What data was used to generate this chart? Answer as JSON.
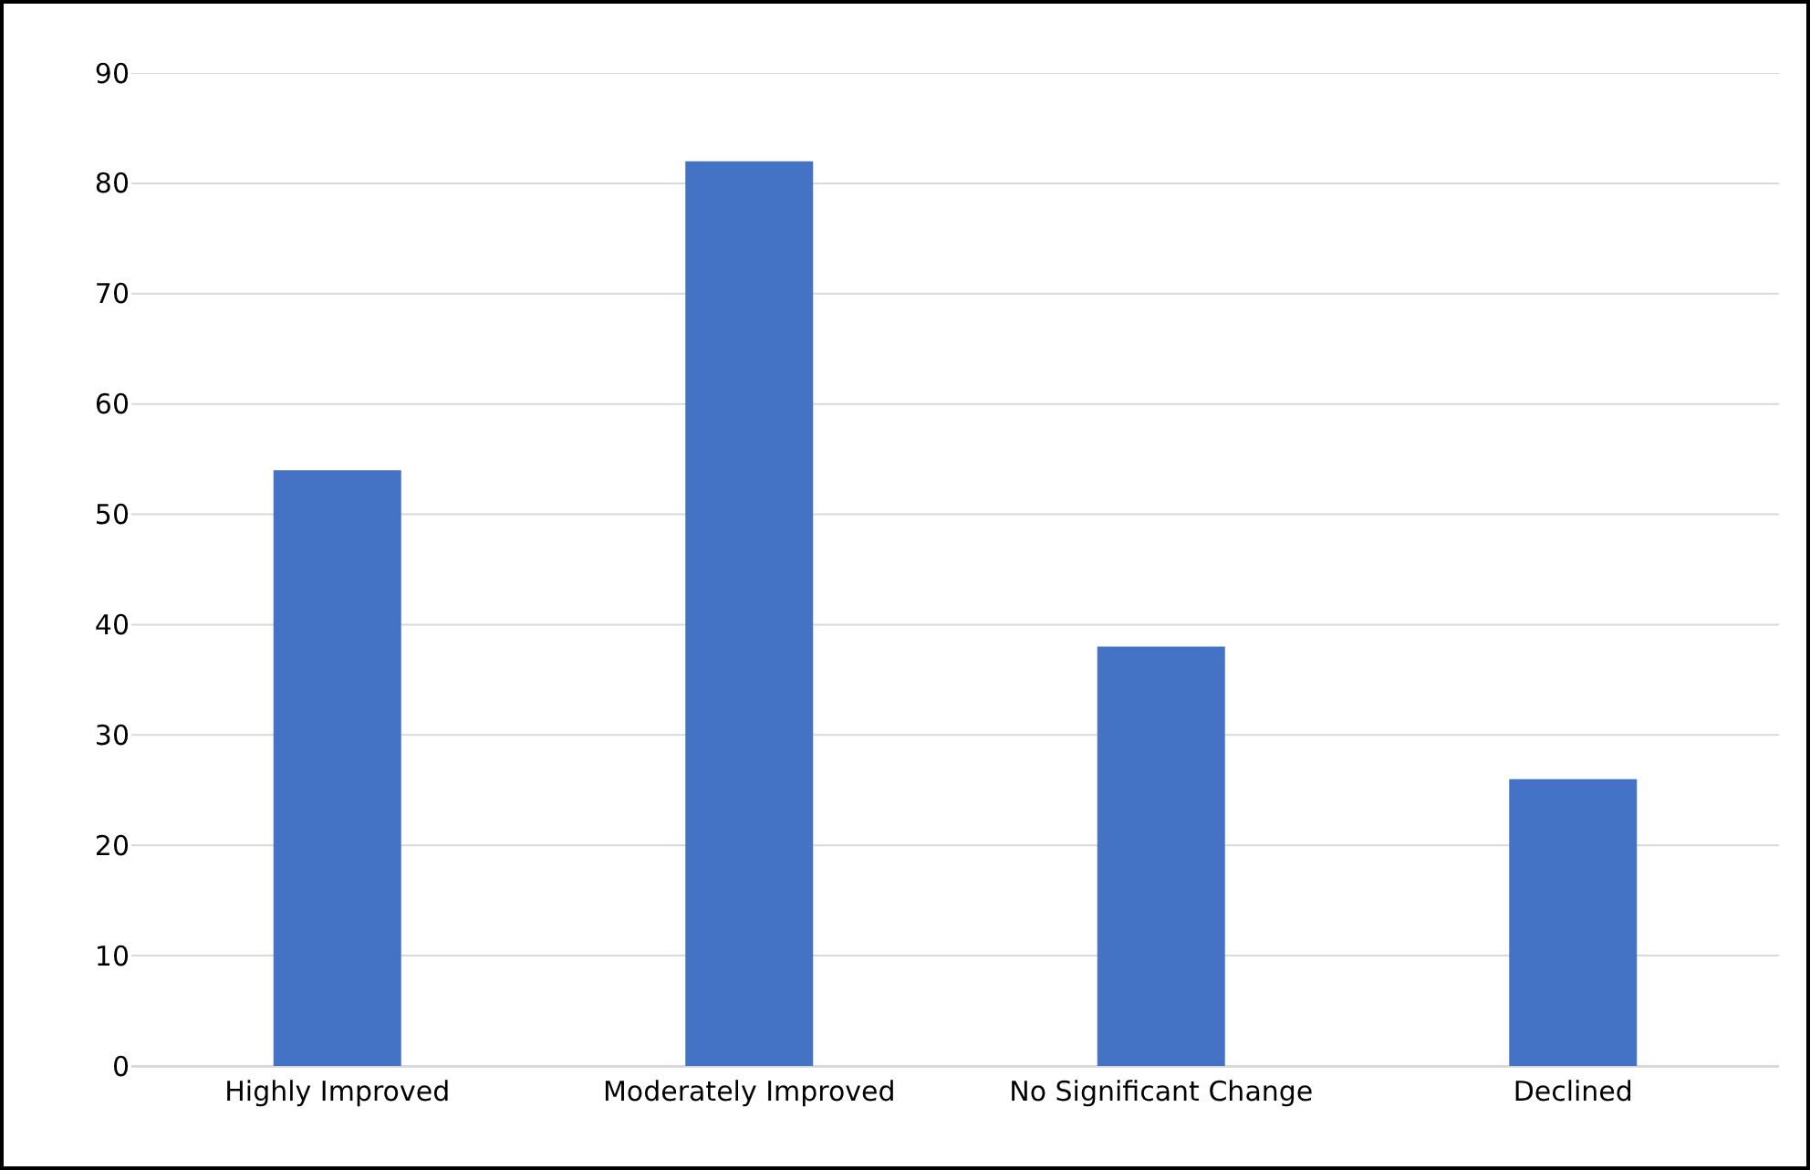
{
  "chart_data": {
    "type": "bar",
    "categories": [
      "Highly Improved",
      "Moderately Improved",
      "No Significant Change",
      "Declined"
    ],
    "values": [
      54,
      82,
      38,
      26
    ],
    "color": "#4472c4",
    "ylim": [
      0,
      90
    ],
    "yticks": [
      0,
      10,
      20,
      30,
      40,
      50,
      60,
      70,
      80,
      90
    ],
    "grid": "y"
  }
}
